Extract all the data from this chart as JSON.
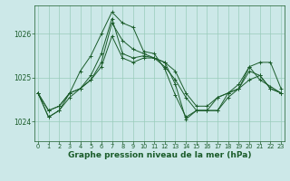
{
  "background_color": "#cce8e8",
  "grid_color": "#99ccbb",
  "line_color": "#1a5c2a",
  "marker": "+",
  "marker_size": 3,
  "marker_lw": 0.7,
  "line_width": 0.7,
  "xlabel": "Graphe pression niveau de la mer (hPa)",
  "xlabel_fontsize": 6.5,
  "ytick_fontsize": 5.5,
  "xtick_fontsize": 4.8,
  "yticks": [
    1024,
    1025,
    1026
  ],
  "xticks": [
    0,
    1,
    2,
    3,
    4,
    5,
    6,
    7,
    8,
    9,
    10,
    11,
    12,
    13,
    14,
    15,
    16,
    17,
    18,
    19,
    20,
    21,
    22,
    23
  ],
  "xlim": [
    -0.3,
    23.3
  ],
  "ylim": [
    1023.55,
    1026.65
  ],
  "series": [
    [
      1024.65,
      1024.1,
      1024.25,
      1024.65,
      1025.15,
      1025.5,
      1026.0,
      1026.5,
      1026.25,
      1026.15,
      1025.6,
      1025.55,
      1025.2,
      1024.6,
      1024.1,
      1024.25,
      1024.25,
      1024.25,
      1024.65,
      1024.85,
      1025.25,
      1024.95,
      1024.8,
      1024.65
    ],
    [
      1024.65,
      1024.1,
      1024.25,
      1024.55,
      1024.75,
      1025.05,
      1025.55,
      1026.35,
      1025.55,
      1025.45,
      1025.5,
      1025.45,
      1025.25,
      1024.95,
      1024.55,
      1024.25,
      1024.25,
      1024.55,
      1024.65,
      1024.75,
      1025.15,
      1025.05,
      1024.75,
      1024.65
    ],
    [
      1024.65,
      1024.25,
      1024.35,
      1024.65,
      1024.75,
      1024.95,
      1025.35,
      1026.25,
      1025.85,
      1025.65,
      1025.55,
      1025.45,
      1025.35,
      1024.85,
      1024.05,
      1024.25,
      1024.25,
      1024.25,
      1024.55,
      1024.75,
      1024.95,
      1025.05,
      1024.75,
      1024.65
    ],
    [
      1024.65,
      1024.25,
      1024.35,
      1024.65,
      1024.75,
      1024.95,
      1025.25,
      1025.95,
      1025.45,
      1025.35,
      1025.45,
      1025.45,
      1025.35,
      1025.15,
      1024.65,
      1024.35,
      1024.35,
      1024.55,
      1024.65,
      1024.75,
      1025.25,
      1025.35,
      1025.35,
      1024.75
    ]
  ]
}
